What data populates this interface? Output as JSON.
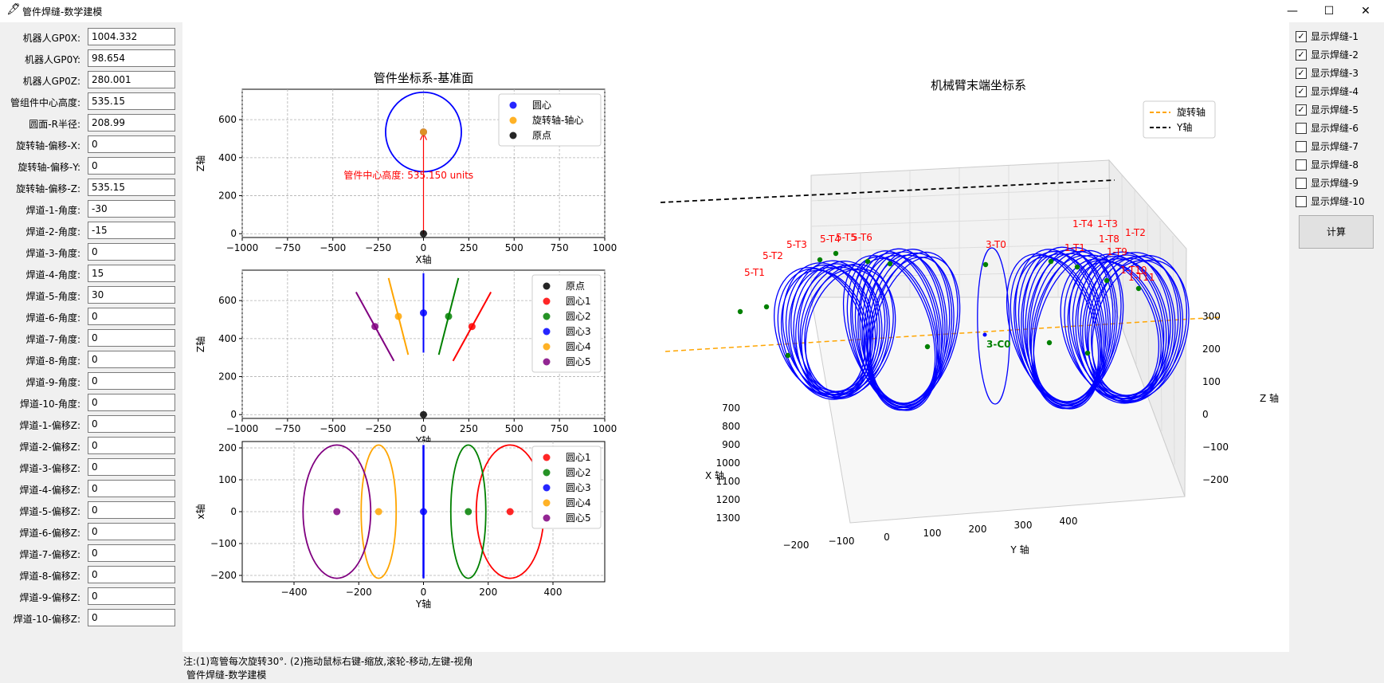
{
  "window": {
    "title": "管件焊缝-数学建模",
    "app_icon": "feather-icon",
    "minimize": "—",
    "maximize": "☐",
    "close": "✕"
  },
  "params": [
    {
      "label": "机器人GP0X:",
      "value": "1004.332"
    },
    {
      "label": "机器人GP0Y:",
      "value": "98.654"
    },
    {
      "label": "机器人GP0Z:",
      "value": "280.001"
    },
    {
      "label": "管组件中心高度:",
      "value": "535.15"
    },
    {
      "label": "圆面-R半径:",
      "value": "208.99"
    },
    {
      "label": "旋转轴-偏移-X:",
      "value": "0"
    },
    {
      "label": "旋转轴-偏移-Y:",
      "value": "0"
    },
    {
      "label": "旋转轴-偏移-Z:",
      "value": "535.15"
    },
    {
      "label": "焊道-1-角度:",
      "value": "-30"
    },
    {
      "label": "焊道-2-角度:",
      "value": "-15"
    },
    {
      "label": "焊道-3-角度:",
      "value": "0"
    },
    {
      "label": "焊道-4-角度:",
      "value": "15"
    },
    {
      "label": "焊道-5-角度:",
      "value": "30"
    },
    {
      "label": "焊道-6-角度:",
      "value": "0"
    },
    {
      "label": "焊道-7-角度:",
      "value": "0"
    },
    {
      "label": "焊道-8-角度:",
      "value": "0"
    },
    {
      "label": "焊道-9-角度:",
      "value": "0"
    },
    {
      "label": "焊道-10-角度:",
      "value": "0"
    },
    {
      "label": "焊道-1-偏移Z:",
      "value": "0"
    },
    {
      "label": "焊道-2-偏移Z:",
      "value": "0"
    },
    {
      "label": "焊道-3-偏移Z:",
      "value": "0"
    },
    {
      "label": "焊道-4-偏移Z:",
      "value": "0"
    },
    {
      "label": "焊道-5-偏移Z:",
      "value": "0"
    },
    {
      "label": "焊道-6-偏移Z:",
      "value": "0"
    },
    {
      "label": "焊道-7-偏移Z:",
      "value": "0"
    },
    {
      "label": "焊道-8-偏移Z:",
      "value": "0"
    },
    {
      "label": "焊道-9-偏移Z:",
      "value": "0"
    },
    {
      "label": "焊道-10-偏移Z:",
      "value": "0"
    }
  ],
  "checkboxes": [
    {
      "label": "显示焊缝-1",
      "checked": true
    },
    {
      "label": "显示焊缝-2",
      "checked": true
    },
    {
      "label": "显示焊缝-3",
      "checked": true
    },
    {
      "label": "显示焊缝-4",
      "checked": true
    },
    {
      "label": "显示焊缝-5",
      "checked": true
    },
    {
      "label": "显示焊缝-6",
      "checked": false
    },
    {
      "label": "显示焊缝-7",
      "checked": false
    },
    {
      "label": "显示焊缝-8",
      "checked": false
    },
    {
      "label": "显示焊缝-9",
      "checked": false
    },
    {
      "label": "显示焊缝-10",
      "checked": false
    }
  ],
  "check_mark": "✓",
  "calc_button": "计算",
  "note": "注:(1)弯管每次旋转30°. (2)拖动鼠标右键-缩放,滚轮-移动,左键-视角",
  "status": "管件焊缝-数学建模",
  "chart_data": [
    {
      "type": "scatter",
      "title": "管件坐标系-基准面",
      "xlabel": "X轴",
      "ylabel": "Z轴",
      "xlim": [
        -1000,
        1000
      ],
      "ylim": [
        -20,
        760
      ],
      "xticks": [
        "−1000",
        "−750",
        "−500",
        "−250",
        "0",
        "250",
        "500",
        "750",
        "1000"
      ],
      "yticks": [
        "0",
        "200",
        "400",
        "600"
      ],
      "grid": true,
      "legend_position": "top-right",
      "annotation": "管件中心高度: 535.150 units",
      "series": [
        {
          "name": "圆心",
          "color": "#0000ff",
          "x": [
            0
          ],
          "y": [
            535.15
          ]
        },
        {
          "name": "旋转轴-轴心",
          "color": "#ffa500",
          "x": [
            0
          ],
          "y": [
            535.15
          ]
        },
        {
          "name": "原点",
          "color": "#000000",
          "x": [
            0
          ],
          "y": [
            0
          ]
        }
      ],
      "circle": {
        "cx": 0,
        "cy": 535.15,
        "r": 208.99,
        "color": "#0000ff"
      }
    },
    {
      "type": "scatter",
      "xlabel": "Y轴",
      "ylabel": "Z轴",
      "xlim": [
        -1000,
        1000
      ],
      "ylim": [
        -20,
        760
      ],
      "xticks": [
        "−1000",
        "−750",
        "−500",
        "−250",
        "0",
        "250",
        "500",
        "750",
        "1000"
      ],
      "yticks": [
        "0",
        "200",
        "400",
        "600"
      ],
      "grid": true,
      "legend_position": "top-right",
      "series": [
        {
          "name": "原点",
          "color": "#000000",
          "x": [
            0
          ],
          "y": [
            0
          ]
        },
        {
          "name": "圆心1",
          "color": "#ff0000",
          "x": [
            267.6
          ],
          "y": [
            463.5
          ]
        },
        {
          "name": "圆心2",
          "color": "#008000",
          "x": [
            138.5
          ],
          "y": [
            516.9
          ]
        },
        {
          "name": "圆心3",
          "color": "#0000ff",
          "x": [
            0
          ],
          "y": [
            535.15
          ]
        },
        {
          "name": "圆心4",
          "color": "#ffa500",
          "x": [
            -138.5
          ],
          "y": [
            516.9
          ]
        },
        {
          "name": "圆心5",
          "color": "#800080",
          "x": [
            -267.6
          ],
          "y": [
            463.5
          ]
        }
      ],
      "lines": [
        {
          "color": "#ff0000",
          "from": [
            163.1
          ],
          "to": [
            372.1
          ],
          "y_from": [
            282.5
          ],
          "y_to": [
            644.5
          ]
        },
        {
          "color": "#008000",
          "from": [
            84.4
          ],
          "to": [
            192.6
          ],
          "y_from": [
            315.0
          ],
          "y_to": [
            718.8
          ]
        },
        {
          "color": "#0000ff",
          "from": [
            0
          ],
          "to": [
            0
          ],
          "y_from": [
            326.2
          ],
          "y_to": [
            744.1
          ]
        },
        {
          "color": "#ffa500",
          "from": [
            -84.4
          ],
          "to": [
            -192.6
          ],
          "y_from": [
            315.0
          ],
          "y_to": [
            718.8
          ]
        },
        {
          "color": "#800080",
          "from": [
            -163.1
          ],
          "to": [
            -372.1
          ],
          "y_from": [
            282.5
          ],
          "y_to": [
            644.5
          ]
        }
      ]
    },
    {
      "type": "scatter",
      "xlabel": "Y轴",
      "ylabel": "x轴",
      "xlim": [
        -560,
        560
      ],
      "ylim": [
        -220,
        220
      ],
      "xticks": [
        "−400",
        "−200",
        "0",
        "200",
        "400"
      ],
      "yticks": [
        "−200",
        "−100",
        "0",
        "100",
        "200"
      ],
      "grid": true,
      "legend_position": "top-right",
      "series": [
        {
          "name": "圆心1",
          "color": "#ff0000",
          "x": [
            267.6
          ],
          "y": [
            0
          ]
        },
        {
          "name": "圆心2",
          "color": "#008000",
          "x": [
            138.5
          ],
          "y": [
            0
          ]
        },
        {
          "name": "圆心3",
          "color": "#0000ff",
          "x": [
            0
          ],
          "y": [
            0
          ]
        },
        {
          "name": "圆心4",
          "color": "#ffa500",
          "x": [
            -138.5
          ],
          "y": [
            0
          ]
        },
        {
          "name": "圆心5",
          "color": "#800080",
          "x": [
            -267.6
          ],
          "y": [
            0
          ]
        }
      ],
      "ellipses": [
        {
          "color": "#ff0000",
          "cx": 267.6,
          "rx": 104.5,
          "ry": 208.99
        },
        {
          "color": "#008000",
          "cx": 138.5,
          "rx": 54.1,
          "ry": 208.99
        },
        {
          "color": "#0000ff",
          "cx": 0,
          "rx": 0,
          "ry": 208.99
        },
        {
          "color": "#ffa500",
          "cx": -138.5,
          "rx": 54.1,
          "ry": 208.99
        },
        {
          "color": "#800080",
          "cx": -267.6,
          "rx": 104.5,
          "ry": 208.99
        }
      ]
    },
    {
      "type": "line",
      "title": "机械臂末端坐标系",
      "xlabel": "X 轴",
      "ylabel": "Y 轴",
      "zlabel": "Z 轴",
      "x_ticks": [
        "700",
        "800",
        "900",
        "1000",
        "1100",
        "1200",
        "1300"
      ],
      "y_ticks": [
        "−200",
        "−100",
        "0",
        "100",
        "200",
        "300",
        "400"
      ],
      "z_ticks": [
        "300",
        "200",
        "100",
        "0",
        "−100",
        "−200"
      ],
      "legend_position": "top-right",
      "legend": [
        {
          "name": "旋转轴",
          "color": "#ffa500",
          "style": "dashed"
        },
        {
          "name": "Y轴",
          "color": "#000000",
          "style": "dashed"
        }
      ],
      "point_labels": [
        "5-T3",
        "5-T2",
        "5-T4",
        "5-T5",
        "5-T6",
        "5-T1",
        "3-T0",
        "1-T1",
        "1-T2",
        "1-T3",
        "1-T4",
        "1-T8",
        "1-T9",
        "1-T10",
        "1-T11",
        "3-C0"
      ]
    }
  ]
}
